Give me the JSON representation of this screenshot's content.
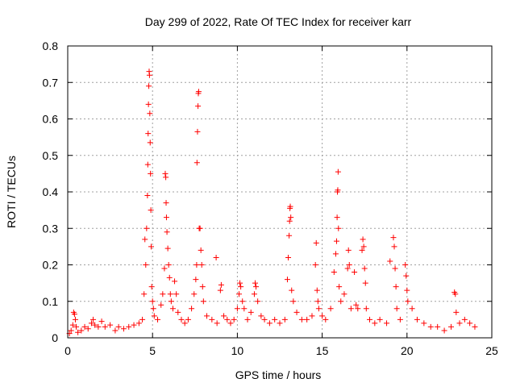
{
  "chart_data": {
    "type": "scatter",
    "title": "Day 299 of 2022, Rate Of TEC Index for receiver karr",
    "xlabel": "GPS time / hours",
    "ylabel": "ROTI / TECUs",
    "xlim": [
      0,
      25
    ],
    "ylim": [
      0,
      0.8
    ],
    "xticks": [
      0,
      5,
      10,
      15,
      20,
      25
    ],
    "yticks": [
      0,
      0.1,
      0.2,
      0.3,
      0.4,
      0.5,
      0.6,
      0.7,
      0.8
    ],
    "xtick_labels": [
      "0",
      "5",
      "10",
      "15",
      "20",
      "25"
    ],
    "ytick_labels": [
      "0",
      "0.1",
      "0.2",
      "0.3",
      "0.4",
      "0.5",
      "0.6",
      "0.7",
      "0.8"
    ],
    "grid": true,
    "marker": "plus",
    "color": "#ff0000",
    "series": [
      {
        "points": [
          [
            0.1,
            0.012
          ],
          [
            0.2,
            0.02
          ],
          [
            0.3,
            0.035
          ],
          [
            0.35,
            0.07
          ],
          [
            0.4,
            0.065
          ],
          [
            0.45,
            0.05
          ],
          [
            0.5,
            0.03
          ],
          [
            0.6,
            0.015
          ],
          [
            0.8,
            0.02
          ],
          [
            1.0,
            0.03
          ],
          [
            1.2,
            0.025
          ],
          [
            1.4,
            0.04
          ],
          [
            1.5,
            0.05
          ],
          [
            1.6,
            0.035
          ],
          [
            1.8,
            0.03
          ],
          [
            2.0,
            0.045
          ],
          [
            2.2,
            0.03
          ],
          [
            2.5,
            0.035
          ],
          [
            2.8,
            0.02
          ],
          [
            3.0,
            0.03
          ],
          [
            3.3,
            0.025
          ],
          [
            3.6,
            0.03
          ],
          [
            3.9,
            0.035
          ],
          [
            4.2,
            0.04
          ],
          [
            4.4,
            0.05
          ],
          [
            4.5,
            0.12
          ],
          [
            4.55,
            0.27
          ],
          [
            4.6,
            0.2
          ],
          [
            4.65,
            0.3
          ],
          [
            4.7,
            0.39
          ],
          [
            4.72,
            0.475
          ],
          [
            4.74,
            0.56
          ],
          [
            4.76,
            0.64
          ],
          [
            4.78,
            0.69
          ],
          [
            4.8,
            0.73
          ],
          [
            4.82,
            0.72
          ],
          [
            4.84,
            0.615
          ],
          [
            4.86,
            0.535
          ],
          [
            4.88,
            0.45
          ],
          [
            4.9,
            0.35
          ],
          [
            4.92,
            0.25
          ],
          [
            4.95,
            0.14
          ],
          [
            5.0,
            0.1
          ],
          [
            5.05,
            0.08
          ],
          [
            5.1,
            0.06
          ],
          [
            5.3,
            0.05
          ],
          [
            5.5,
            0.09
          ],
          [
            5.6,
            0.12
          ],
          [
            5.7,
            0.19
          ],
          [
            5.75,
            0.45
          ],
          [
            5.78,
            0.44
          ],
          [
            5.8,
            0.37
          ],
          [
            5.82,
            0.33
          ],
          [
            5.85,
            0.29
          ],
          [
            5.9,
            0.245
          ],
          [
            5.95,
            0.2
          ],
          [
            6.0,
            0.165
          ],
          [
            6.05,
            0.12
          ],
          [
            6.1,
            0.1
          ],
          [
            6.2,
            0.08
          ],
          [
            6.3,
            0.155
          ],
          [
            6.4,
            0.12
          ],
          [
            6.5,
            0.07
          ],
          [
            6.7,
            0.05
          ],
          [
            6.9,
            0.04
          ],
          [
            7.1,
            0.05
          ],
          [
            7.3,
            0.08
          ],
          [
            7.45,
            0.12
          ],
          [
            7.55,
            0.16
          ],
          [
            7.6,
            0.2
          ],
          [
            7.62,
            0.48
          ],
          [
            7.65,
            0.565
          ],
          [
            7.68,
            0.635
          ],
          [
            7.7,
            0.67
          ],
          [
            7.72,
            0.675
          ],
          [
            7.75,
            0.3
          ],
          [
            7.8,
            0.3
          ],
          [
            7.85,
            0.24
          ],
          [
            7.9,
            0.2
          ],
          [
            7.95,
            0.14
          ],
          [
            8.0,
            0.1
          ],
          [
            8.2,
            0.06
          ],
          [
            8.5,
            0.05
          ],
          [
            8.75,
            0.22
          ],
          [
            8.8,
            0.04
          ],
          [
            9.0,
            0.13
          ],
          [
            9.05,
            0.145
          ],
          [
            9.2,
            0.06
          ],
          [
            9.4,
            0.05
          ],
          [
            9.6,
            0.04
          ],
          [
            9.8,
            0.05
          ],
          [
            10.0,
            0.08
          ],
          [
            10.1,
            0.12
          ],
          [
            10.15,
            0.15
          ],
          [
            10.2,
            0.14
          ],
          [
            10.3,
            0.1
          ],
          [
            10.4,
            0.08
          ],
          [
            10.6,
            0.05
          ],
          [
            10.8,
            0.07
          ],
          [
            11.0,
            0.12
          ],
          [
            11.05,
            0.15
          ],
          [
            11.1,
            0.14
          ],
          [
            11.2,
            0.1
          ],
          [
            11.4,
            0.06
          ],
          [
            11.6,
            0.05
          ],
          [
            11.9,
            0.04
          ],
          [
            12.2,
            0.05
          ],
          [
            12.5,
            0.04
          ],
          [
            12.8,
            0.05
          ],
          [
            12.95,
            0.16
          ],
          [
            13.0,
            0.22
          ],
          [
            13.05,
            0.28
          ],
          [
            13.08,
            0.32
          ],
          [
            13.1,
            0.355
          ],
          [
            13.12,
            0.36
          ],
          [
            13.15,
            0.33
          ],
          [
            13.2,
            0.13
          ],
          [
            13.3,
            0.1
          ],
          [
            13.5,
            0.07
          ],
          [
            13.8,
            0.05
          ],
          [
            14.1,
            0.05
          ],
          [
            14.4,
            0.06
          ],
          [
            14.6,
            0.2
          ],
          [
            14.65,
            0.26
          ],
          [
            14.7,
            0.13
          ],
          [
            14.75,
            0.1
          ],
          [
            14.8,
            0.08
          ],
          [
            15.0,
            0.06
          ],
          [
            15.2,
            0.05
          ],
          [
            15.5,
            0.08
          ],
          [
            15.7,
            0.18
          ],
          [
            15.8,
            0.23
          ],
          [
            15.85,
            0.265
          ],
          [
            15.88,
            0.33
          ],
          [
            15.9,
            0.4
          ],
          [
            15.92,
            0.405
          ],
          [
            15.94,
            0.455
          ],
          [
            15.96,
            0.3
          ],
          [
            16.0,
            0.14
          ],
          [
            16.1,
            0.1
          ],
          [
            16.3,
            0.12
          ],
          [
            16.5,
            0.19
          ],
          [
            16.55,
            0.24
          ],
          [
            16.6,
            0.2
          ],
          [
            16.7,
            0.08
          ],
          [
            16.9,
            0.18
          ],
          [
            17.0,
            0.09
          ],
          [
            17.1,
            0.08
          ],
          [
            17.35,
            0.24
          ],
          [
            17.4,
            0.27
          ],
          [
            17.45,
            0.25
          ],
          [
            17.5,
            0.19
          ],
          [
            17.55,
            0.15
          ],
          [
            17.6,
            0.08
          ],
          [
            17.8,
            0.05
          ],
          [
            18.1,
            0.04
          ],
          [
            18.4,
            0.05
          ],
          [
            18.8,
            0.04
          ],
          [
            19.0,
            0.21
          ],
          [
            19.2,
            0.275
          ],
          [
            19.25,
            0.25
          ],
          [
            19.3,
            0.19
          ],
          [
            19.35,
            0.14
          ],
          [
            19.4,
            0.08
          ],
          [
            19.6,
            0.05
          ],
          [
            19.9,
            0.2
          ],
          [
            19.95,
            0.17
          ],
          [
            20.0,
            0.13
          ],
          [
            20.05,
            0.1
          ],
          [
            20.3,
            0.08
          ],
          [
            20.6,
            0.05
          ],
          [
            21.0,
            0.04
          ],
          [
            21.4,
            0.03
          ],
          [
            21.8,
            0.03
          ],
          [
            22.2,
            0.02
          ],
          [
            22.6,
            0.03
          ],
          [
            22.8,
            0.125
          ],
          [
            22.85,
            0.12
          ],
          [
            22.9,
            0.07
          ],
          [
            23.1,
            0.04
          ],
          [
            23.4,
            0.05
          ],
          [
            23.7,
            0.04
          ],
          [
            24.0,
            0.03
          ]
        ]
      }
    ]
  }
}
